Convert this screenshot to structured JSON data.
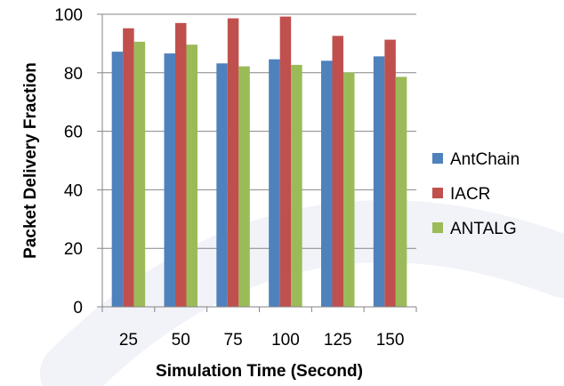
{
  "chart_data": {
    "type": "bar",
    "title": "",
    "xlabel": "Simulation Time (Second)",
    "ylabel": "Packet Delivery Fraction",
    "categories": [
      "25",
      "50",
      "75",
      "100",
      "125",
      "150"
    ],
    "series": [
      {
        "name": "AntChain",
        "color": "#4f81bd",
        "values": [
          87.2,
          86.6,
          83.2,
          84.6,
          84.1,
          85.6
        ]
      },
      {
        "name": "IACR",
        "color": "#c0504d",
        "values": [
          95.2,
          97.0,
          98.6,
          99.2,
          92.6,
          91.3
        ]
      },
      {
        "name": "ANTALG",
        "color": "#9bbb59",
        "values": [
          90.6,
          89.6,
          82.2,
          82.7,
          80.1,
          78.6
        ]
      }
    ],
    "ylim": [
      0,
      100
    ],
    "yticks": [
      0,
      20,
      40,
      60,
      80,
      100
    ],
    "grid": true,
    "legend_position": "right"
  }
}
